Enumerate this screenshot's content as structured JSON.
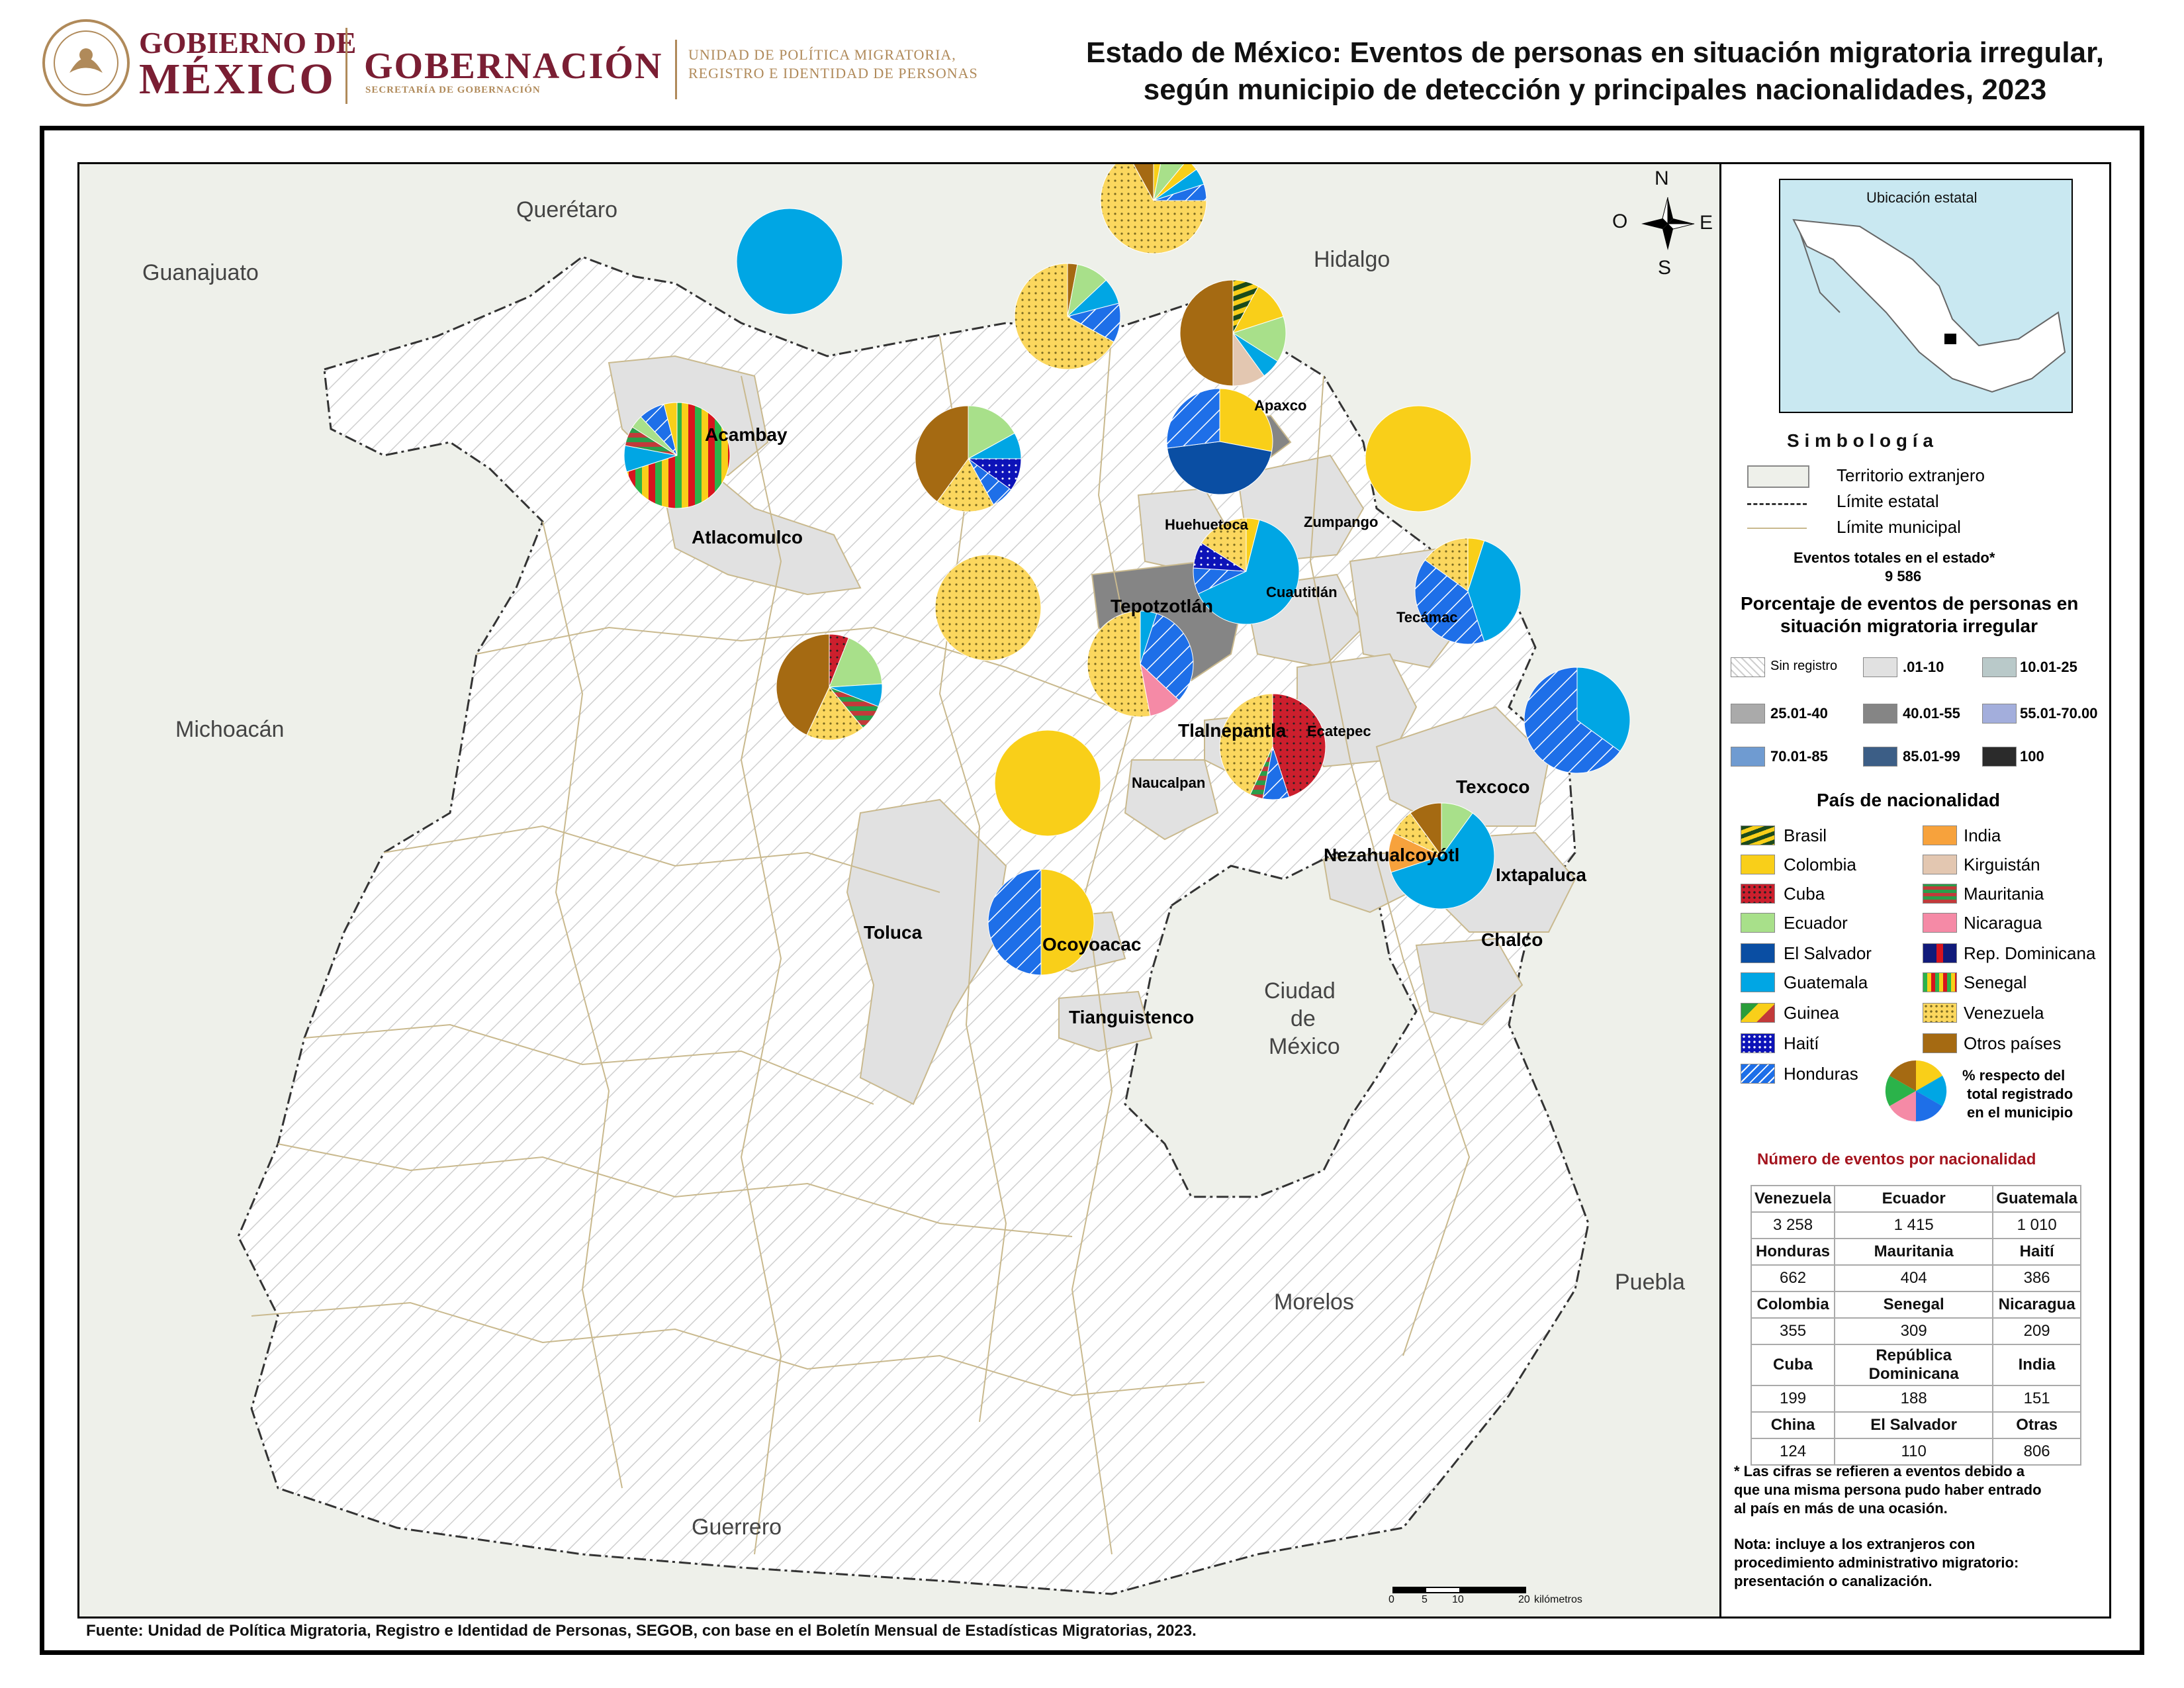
{
  "header": {
    "gobierno_line1": "GOBIERNO DE",
    "gobierno_line2": "MÉXICO",
    "gobernacion": "GOBERNACIÓN",
    "gobernacion_sub": "SECRETARÍA DE GOBERNACIÓN",
    "unidad_line1": "UNIDAD DE POLÍTICA MIGRATORIA,",
    "unidad_line2": "REGISTRO E IDENTIDAD DE PERSONAS",
    "title_line1": "Estado de México: Eventos de personas en situación migratoria irregular,",
    "title_line2": "según municipio de detección y principales nacionalidades, 2023"
  },
  "neighbors": {
    "queretaro": "Querétaro",
    "guanajuato": "Guanajuato",
    "hidalgo": "Hidalgo",
    "michoacan": "Michoacán",
    "puebla": "Puebla",
    "morelos": "Morelos",
    "guerrero": "Guerrero",
    "cdmx_1": "Ciudad",
    "cdmx_2": "de",
    "cdmx_3": "México"
  },
  "compass": {
    "n": "N",
    "s": "S",
    "e": "E",
    "o": "O"
  },
  "scale": {
    "t0": "0",
    "t5": "5",
    "t10": "10",
    "t20": "20",
    "unit": "kilómetros"
  },
  "municipalities": {
    "acambay": "Acambay",
    "atlacomulco": "Atlacomulco",
    "apaxco": "Apaxco",
    "huehuetoca": "Huehuetoca",
    "zumpango": "Zumpango",
    "tepotzotlan": "Tepotzotlán",
    "cuautitlan": "Cuautitlán",
    "tecamac": "Tecámac",
    "tlalnepantla": "Tlalnepantla",
    "ecatepec": "Ecatepec",
    "naucalpan": "Naucalpan",
    "texcoco": "Texcoco",
    "toluca": "Toluca",
    "nezahualcoyotl": "Nezahualcoyótl",
    "ixtapaluca": "Ixtapaluca",
    "ocoyoacac": "Ocoyoacac",
    "chalco": "Chalco",
    "tianguistenco": "Tianguistenco"
  },
  "colors": {
    "brasil": "#1b4a1b",
    "colombia": "#f9cf19",
    "cuba": "#cc1f2d",
    "ecuador": "#a8e08a",
    "el_salvador": "#0a4ea3",
    "guatemala": "#00a6e4",
    "guinea": "#2a9d3a",
    "haiti": "#0d13b8",
    "honduras": "#1e6fe8",
    "india": "#f7a23c",
    "kirguistan": "#e3c7b1",
    "mauritania": "#c23a3a",
    "nicaragua": "#f58aa6",
    "rep_dominicana": "#111a7a",
    "senegal": "#2bb34a",
    "venezuela": "#fbd75e",
    "otros": "#a56a12",
    "foreign": "#eef0ea",
    "state_base": "#ffffff",
    "light_muni": "#e1e1e1",
    "mid_muni": "#858585",
    "border_muni": "#c9b98e"
  },
  "legend": {
    "inset_title": "Ubicación estatal",
    "simbologia": "S i m b o l o g í a",
    "territorio": "Territorio extranjero",
    "limite_estatal": "Límite estatal",
    "limite_municipal": "Límite municipal",
    "eventos_label": "Eventos totales en el estado*",
    "eventos_value": "9 586",
    "porcentaje_title_1": "Porcentaje de eventos de personas en",
    "porcentaje_title_2": "situación migratoria irregular",
    "classes": [
      {
        "label": "Sin registro",
        "color": "#ffffff"
      },
      {
        "label": ".01-10",
        "color": "#e1e1e1"
      },
      {
        "label": "10.01-25",
        "color": "#b9c9c9"
      },
      {
        "label": "25.01-40",
        "color": "#aaaaaa"
      },
      {
        "label": "40.01-55",
        "color": "#858585"
      },
      {
        "label": "55.01-70.00",
        "color": "#a3aedc"
      },
      {
        "label": "70.01-85",
        "color": "#6f9bd1"
      },
      {
        "label": "85.01-99",
        "color": "#3c5e86"
      },
      {
        "label": "100",
        "color": "#2b2b2b"
      }
    ],
    "pais_title": "País de nacionalidad",
    "countries_left": [
      "Brasil",
      "Colombia",
      "Cuba",
      "Ecuador",
      "El Salvador",
      "Guatemala",
      "Guinea",
      "Haití",
      "Honduras"
    ],
    "countries_right": [
      "India",
      "Kirguistán",
      "Mauritania",
      "Nicaragua",
      "Rep. Dominicana",
      "Senegal",
      "Venezuela",
      "Otros países"
    ],
    "pct_note_1": "% respecto del",
    "pct_note_2": "total registrado",
    "pct_note_3": "en el municipio"
  },
  "counts_title": "Número de eventos por nacionalidad",
  "counts": [
    [
      {
        "h": "Venezuela",
        "v": "3 258"
      },
      {
        "h": "Ecuador",
        "v": "1 415"
      },
      {
        "h": "Guatemala",
        "v": "1 010"
      }
    ],
    [
      {
        "h": "Honduras",
        "v": "662"
      },
      {
        "h": "Mauritania",
        "v": "404"
      },
      {
        "h": "Haití",
        "v": "386"
      }
    ],
    [
      {
        "h": "Colombia",
        "v": "355"
      },
      {
        "h": "Senegal",
        "v": "309"
      },
      {
        "h": "Nicaragua",
        "v": "209"
      }
    ],
    [
      {
        "h": "Cuba",
        "v": "199"
      },
      {
        "h": "República Dominicana",
        "v": "188"
      },
      {
        "h": "India",
        "v": "151"
      }
    ],
    [
      {
        "h": "China",
        "v": "124"
      },
      {
        "h": "El Salvador",
        "v": "110"
      },
      {
        "h": "Otras",
        "v": "806"
      }
    ]
  ],
  "notes": {
    "n1_1": "* Las cifras se refieren a eventos debido a",
    "n1_2": "que una misma persona pudo haber entrado",
    "n1_3": "al país en más de una ocasión.",
    "n2_1": "Nota: incluye a los extranjeros con",
    "n2_2": "procedimiento administrativo migratorio:",
    "n2_3": "presentación o canalización."
  },
  "source": "Fuente: Unidad de Política Migratoria, Registro e Identidad de Personas, SEGOB, con base en el Boletín Mensual de Estadísticas Migratorias, 2023.",
  "pies": [
    {
      "id": "acambay",
      "slices": [
        [
          "guatemala",
          100
        ]
      ]
    },
    {
      "id": "atlacomulco",
      "slices": [
        [
          "senegal",
          70
        ],
        [
          "guatemala",
          8
        ],
        [
          "mauritania",
          6
        ],
        [
          "ecuador",
          4
        ],
        [
          "honduras",
          8
        ],
        [
          "colombia",
          4
        ]
      ]
    },
    {
      "id": "apaxco",
      "slices": [
        [
          "colombia",
          3
        ],
        [
          "ecuador",
          8
        ],
        [
          "colombia",
          4
        ],
        [
          "guatemala",
          5
        ],
        [
          "honduras",
          5
        ],
        [
          "venezuela",
          67
        ],
        [
          "otros",
          8
        ]
      ]
    },
    {
      "id": "huehuetoca",
      "slices": [
        [
          "otros",
          3
        ],
        [
          "ecuador",
          10
        ],
        [
          "guatemala",
          8
        ],
        [
          "honduras",
          12
        ],
        [
          "venezuela",
          67
        ]
      ]
    },
    {
      "id": "zumpango",
      "slices": [
        [
          "brasil",
          8
        ],
        [
          "colombia",
          12
        ],
        [
          "ecuador",
          14
        ],
        [
          "guatemala",
          6
        ],
        [
          "kirguistan",
          10
        ],
        [
          "otros",
          50
        ]
      ]
    },
    {
      "id": "tepotzotlan",
      "slices": [
        [
          "ecuador",
          17
        ],
        [
          "guatemala",
          8
        ],
        [
          "haiti",
          10
        ],
        [
          "honduras",
          7
        ],
        [
          "venezuela",
          18
        ],
        [
          "otros",
          40
        ]
      ]
    },
    {
      "id": "cuautitlan",
      "slices": [
        [
          "colombia",
          28
        ],
        [
          "el_salvador",
          45
        ],
        [
          "honduras",
          27
        ]
      ]
    },
    {
      "id": "tecamac",
      "slices": [
        [
          "colombia",
          100
        ]
      ]
    },
    {
      "id": "ecatepec",
      "slices": [
        [
          "colombia",
          4
        ],
        [
          "guatemala",
          64
        ],
        [
          "honduras",
          8
        ],
        [
          "haiti",
          8
        ],
        [
          "venezuela",
          16
        ]
      ]
    },
    {
      "id": "naucalpan",
      "slices": [
        [
          "venezuela",
          100
        ]
      ]
    },
    {
      "id": "tlalnepantla",
      "slices": [
        [
          "guatemala",
          5
        ],
        [
          "honduras",
          32
        ],
        [
          "nicaragua",
          10
        ],
        [
          "venezuela",
          53
        ]
      ]
    },
    {
      "id": "texcoco",
      "slices": [
        [
          "colombia",
          5
        ],
        [
          "guatemala",
          40
        ],
        [
          "honduras",
          40
        ],
        [
          "venezuela",
          15
        ]
      ]
    },
    {
      "id": "toluca",
      "slices": [
        [
          "cuba",
          6
        ],
        [
          "ecuador",
          18
        ],
        [
          "guatemala",
          7
        ],
        [
          "mauritania",
          8
        ],
        [
          "venezuela",
          18
        ],
        [
          "otros",
          43
        ]
      ]
    },
    {
      "id": "nezahualcoyotl",
      "slices": [
        [
          "cuba",
          45
        ],
        [
          "honduras",
          8
        ],
        [
          "mauritania",
          4
        ],
        [
          "venezuela",
          43
        ]
      ]
    },
    {
      "id": "ixtapaluca",
      "slices": [
        [
          "guatemala",
          35
        ],
        [
          "honduras",
          65
        ]
      ]
    },
    {
      "id": "ocoyoacac",
      "slices": [
        [
          "colombia",
          100
        ]
      ]
    },
    {
      "id": "chalco",
      "slices": [
        [
          "ecuador",
          10
        ],
        [
          "guatemala",
          60
        ],
        [
          "india",
          12
        ],
        [
          "venezuela",
          8
        ],
        [
          "otros",
          10
        ]
      ]
    },
    {
      "id": "tianguistenco",
      "slices": [
        [
          "colombia",
          50
        ],
        [
          "honduras",
          50
        ]
      ]
    }
  ]
}
